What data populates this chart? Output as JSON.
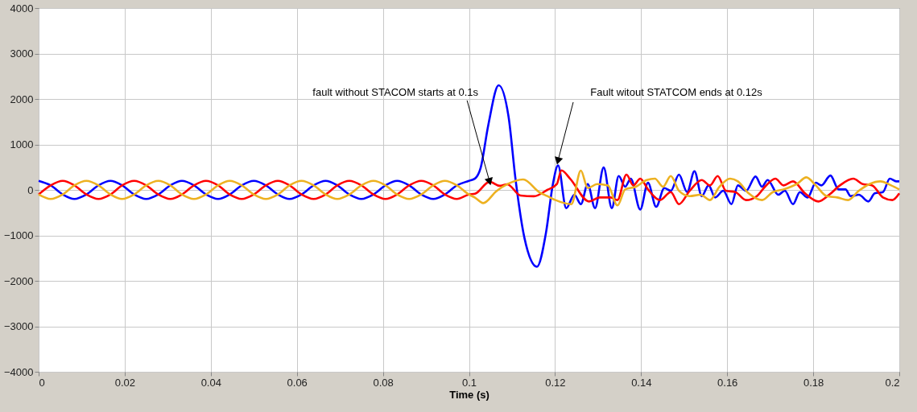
{
  "chart_data": {
    "type": "line",
    "xlabel": "Time (s)",
    "xlim": [
      0,
      0.2
    ],
    "xticks": [
      0,
      0.02,
      0.04,
      0.06,
      0.08,
      0.1,
      0.12,
      0.14,
      0.16,
      0.18,
      0.2
    ],
    "ylim": [
      -4000,
      4000
    ],
    "yticks": [
      -4000,
      -3000,
      -2000,
      -1000,
      0,
      1000,
      2000,
      3000,
      4000
    ],
    "grid": true,
    "line_style": "solid",
    "marker": "none",
    "annotations": [
      {
        "text": "fault without STACOM starts at 0.1s",
        "x": 0.1048,
        "y": 180
      },
      "Fault witout STATCOM ends at 0.12s"
    ],
    "series": [
      {
        "color": "#0000ff",
        "x": [
          0,
          0.0028,
          0.0056,
          0.0083,
          0.0111,
          0.0139,
          0.0167,
          0.0194,
          0.0222,
          0.025,
          0.0278,
          0.0306,
          0.0333,
          0.0361,
          0.0389,
          0.0417,
          0.0444,
          0.0472,
          0.05,
          0.0528,
          0.0556,
          0.0583,
          0.0611,
          0.0639,
          0.0667,
          0.0694,
          0.0722,
          0.075,
          0.0778,
          0.0806,
          0.0833,
          0.0861,
          0.0889,
          0.0917,
          0.0944,
          0.0972,
          0.1,
          0.1014,
          0.1027,
          0.1045,
          0.1069,
          0.1092,
          0.1108,
          0.1129,
          0.1158,
          0.1179,
          0.1195,
          0.1207,
          0.1226,
          0.1245,
          0.126,
          0.1276,
          0.1293,
          0.1313,
          0.1332,
          0.1348,
          0.1363,
          0.1376,
          0.1398,
          0.1416,
          0.1435,
          0.1454,
          0.1469,
          0.1488,
          0.1507,
          0.1524,
          0.1541,
          0.1557,
          0.1572,
          0.1591,
          0.161,
          0.1625,
          0.1644,
          0.1666,
          0.1681,
          0.1694,
          0.1719,
          0.1734,
          0.1753,
          0.1769,
          0.1787,
          0.1806,
          0.1819,
          0.184,
          0.1859,
          0.1875,
          0.1887,
          0.1906,
          0.1928,
          0.1943,
          0.1962,
          0.1978,
          0.1993,
          0.2
        ],
        "values": [
          200,
          100,
          -100,
          -200,
          -100,
          100,
          200,
          100,
          -100,
          -200,
          -100,
          100,
          200,
          100,
          -100,
          -200,
          -100,
          100,
          200,
          100,
          -100,
          -200,
          -100,
          100,
          200,
          100,
          -100,
          -200,
          -100,
          100,
          200,
          100,
          -100,
          -200,
          -100,
          100,
          200,
          250,
          480,
          1430,
          2300,
          1610,
          250,
          -1060,
          -1690,
          -940,
          125,
          541,
          -401,
          -107,
          -313,
          129,
          -401,
          494,
          -401,
          306,
          70,
          247,
          -431,
          158,
          -372,
          40,
          -19,
          335,
          -48,
          412,
          -136,
          99,
          -166,
          -19,
          -313,
          99,
          -19,
          294,
          70,
          217,
          -107,
          -19,
          -313,
          -48,
          -166,
          158,
          99,
          317,
          11,
          11,
          -136,
          -107,
          -254,
          -77,
          -48,
          247,
          188,
          188
        ]
      },
      {
        "color": "#ff0000",
        "x": [
          0,
          0.0028,
          0.0056,
          0.0083,
          0.0111,
          0.0139,
          0.0167,
          0.0194,
          0.0222,
          0.025,
          0.0278,
          0.0306,
          0.0333,
          0.0361,
          0.0389,
          0.0417,
          0.0444,
          0.0472,
          0.05,
          0.0528,
          0.0556,
          0.0583,
          0.0611,
          0.0639,
          0.0667,
          0.0694,
          0.0722,
          0.075,
          0.0778,
          0.0806,
          0.0833,
          0.0861,
          0.0889,
          0.0917,
          0.0944,
          0.0972,
          0.1,
          0.1014,
          0.1048,
          0.1071,
          0.1089,
          0.112,
          0.1151,
          0.1182,
          0.1204,
          0.1215,
          0.1235,
          0.1279,
          0.1304,
          0.1329,
          0.1345,
          0.1366,
          0.1382,
          0.1398,
          0.1416,
          0.1444,
          0.1469,
          0.1488,
          0.1513,
          0.1541,
          0.156,
          0.1578,
          0.1597,
          0.1619,
          0.1644,
          0.1669,
          0.1688,
          0.1712,
          0.1731,
          0.1753,
          0.1781,
          0.1812,
          0.1837,
          0.1862,
          0.1893,
          0.1915,
          0.1937,
          0.1962,
          0.1984,
          0.2
        ],
        "values": [
          -100,
          100,
          200,
          100,
          -100,
          -200,
          -100,
          100,
          200,
          100,
          -100,
          -200,
          -100,
          100,
          200,
          100,
          -100,
          -200,
          -100,
          100,
          200,
          100,
          -100,
          -200,
          -100,
          100,
          200,
          100,
          -100,
          -200,
          -100,
          100,
          200,
          100,
          -100,
          -200,
          -100,
          -85,
          180,
          90,
          125,
          -125,
          -140,
          0,
          125,
          430,
          247,
          -254,
          -166,
          -166,
          -224,
          335,
          99,
          247,
          11,
          -224,
          -48,
          -313,
          -19,
          217,
          99,
          306,
          -19,
          -48,
          -224,
          -136,
          70,
          247,
          99,
          188,
          -77,
          -254,
          -107,
          99,
          247,
          129,
          99,
          -166,
          -224,
          -77
        ]
      },
      {
        "color": "#edb120",
        "x": [
          0,
          0.0028,
          0.0056,
          0.0083,
          0.0111,
          0.0139,
          0.0167,
          0.0194,
          0.0222,
          0.025,
          0.0278,
          0.0306,
          0.0333,
          0.0361,
          0.0389,
          0.0417,
          0.0444,
          0.0472,
          0.05,
          0.0528,
          0.0556,
          0.0583,
          0.0611,
          0.0639,
          0.0667,
          0.0694,
          0.0722,
          0.075,
          0.0778,
          0.0806,
          0.0833,
          0.0861,
          0.0889,
          0.0917,
          0.0944,
          0.0972,
          0.1,
          0.1014,
          0.1033,
          0.1064,
          0.1089,
          0.1126,
          0.1164,
          0.1182,
          0.1201,
          0.1238,
          0.126,
          0.1276,
          0.1298,
          0.1323,
          0.1345,
          0.1363,
          0.1388,
          0.1413,
          0.1432,
          0.1451,
          0.1469,
          0.1488,
          0.1513,
          0.1538,
          0.156,
          0.1582,
          0.1607,
          0.1625,
          0.165,
          0.1681,
          0.1706,
          0.1731,
          0.1762,
          0.1784,
          0.1806,
          0.1831,
          0.1856,
          0.1881,
          0.1906,
          0.1931,
          0.1956,
          0.1981,
          0.2
        ],
        "values": [
          -100,
          -200,
          -100,
          100,
          200,
          100,
          -100,
          -200,
          -100,
          100,
          200,
          100,
          -100,
          -200,
          -100,
          100,
          200,
          100,
          -100,
          -200,
          -100,
          100,
          200,
          100,
          -100,
          -200,
          -100,
          100,
          200,
          100,
          -100,
          -200,
          -100,
          100,
          200,
          100,
          -100,
          -170,
          -290,
          -25,
          125,
          230,
          -55,
          -136,
          -224,
          -313,
          424,
          40,
          129,
          99,
          -342,
          11,
          70,
          217,
          247,
          70,
          306,
          -19,
          -136,
          -107,
          -224,
          70,
          247,
          188,
          -77,
          -224,
          -48,
          11,
          129,
          276,
          99,
          -136,
          -166,
          -224,
          -19,
          129,
          188,
          99,
          11
        ]
      }
    ]
  }
}
